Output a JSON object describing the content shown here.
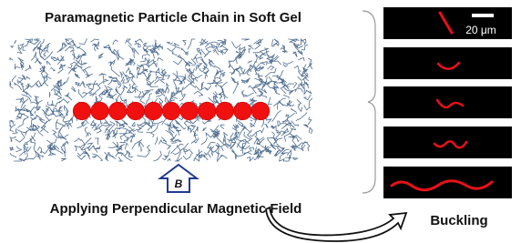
{
  "title": "Paramagnetic Particle Chain in Soft Gel",
  "field_symbol": "B",
  "field_caption": "Applying Perpendicular Magnetic Field",
  "result_label": "Buckling",
  "scale_bar_label": "20 μm"
}
